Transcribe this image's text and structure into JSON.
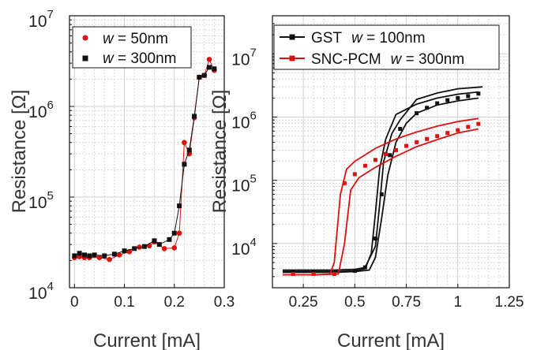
{
  "chart_data": [
    {
      "type": "scatter",
      "xlabel": "Current [mA]",
      "ylabel": "Resistance [Ω]",
      "xlim": [
        -0.01,
        0.3
      ],
      "ylim": [
        10000,
        10000000
      ],
      "yscale": "log",
      "grid": true,
      "legend_position": "top-left",
      "x_ticks": [
        "0",
        "0.1",
        "0.2",
        "0.3"
      ],
      "x_tick_values": [
        0,
        0.1,
        0.2,
        0.3
      ],
      "y_tick_values": [
        10000,
        100000,
        1000000,
        10000000
      ],
      "y_tick_exponents": [
        "4",
        "5",
        "6",
        "7"
      ],
      "y_tick_base": "10",
      "series": [
        {
          "name_prefix": "w",
          "name": " = 50nm",
          "color": "#e01010",
          "marker": "circle",
          "x": [
            0.0,
            0.01,
            0.02,
            0.03,
            0.05,
            0.07,
            0.09,
            0.11,
            0.13,
            0.15,
            0.16,
            0.18,
            0.2,
            0.21,
            0.22,
            0.23,
            0.24,
            0.25,
            0.26,
            0.27,
            0.28
          ],
          "y": [
            21500,
            22000,
            21500,
            21500,
            21500,
            20500,
            23000,
            25000,
            28000,
            29000,
            32000,
            27000,
            27500,
            40000,
            400000,
            300000,
            750000,
            2100000,
            2200000,
            3300000,
            2500000
          ]
        },
        {
          "name_prefix": "w",
          "name": " = 300nm",
          "color": "#111111",
          "marker": "square",
          "x": [
            0.0,
            0.01,
            0.02,
            0.03,
            0.04,
            0.06,
            0.08,
            0.1,
            0.12,
            0.14,
            0.16,
            0.17,
            0.19,
            0.2,
            0.21,
            0.22,
            0.23,
            0.24,
            0.25,
            0.26,
            0.27,
            0.28
          ],
          "y": [
            22500,
            24000,
            23000,
            22500,
            23000,
            22500,
            23500,
            25500,
            27000,
            28500,
            33000,
            30000,
            34000,
            40000,
            80000,
            230000,
            330000,
            780000,
            2100000,
            2200000,
            2700000,
            2600000
          ]
        }
      ]
    },
    {
      "type": "line",
      "xlabel": "Current [mA]",
      "ylabel": "Resistance [Ω]",
      "xlim": [
        0.1,
        1.25
      ],
      "ylim": [
        2000,
        40000000
      ],
      "yscale": "log",
      "grid": true,
      "legend_position": "top",
      "x_ticks": [
        "0.25",
        "0.5",
        "0.75",
        "1",
        "1.25"
      ],
      "x_tick_values": [
        0.25,
        0.5,
        0.75,
        1.0,
        1.25
      ],
      "y_tick_values": [
        10000,
        100000,
        1000000,
        10000000
      ],
      "y_tick_exponents": [
        "4",
        "5",
        "6",
        "7"
      ],
      "y_tick_base": "10",
      "series": [
        {
          "name": "GST",
          "name_suffix": " = 100nm",
          "name_var": "w",
          "color": "#111111",
          "marker": "square",
          "curves": [
            {
              "x": [
                0.15,
                0.2,
                0.3,
                0.4,
                0.5,
                0.55,
                0.58,
                0.6,
                0.62,
                0.65,
                0.7,
                0.8,
                0.9,
                1.0,
                1.1
              ],
              "y": [
                3600,
                3600,
                3600,
                3600,
                3700,
                4000,
                7000,
                30000,
                150000,
                450000,
                1100000,
                1600000,
                2000000,
                2300000,
                2500000
              ]
            },
            {
              "x": [
                0.15,
                0.2,
                0.3,
                0.4,
                0.5,
                0.57,
                0.6,
                0.63,
                0.66,
                0.7,
                0.75,
                0.8,
                0.9,
                1.0,
                1.1
              ],
              "y": [
                3500,
                3500,
                3500,
                3500,
                3600,
                3800,
                6000,
                25000,
                120000,
                400000,
                800000,
                1150000,
                1550000,
                1800000,
                2000000
              ]
            },
            {
              "x": [
                0.15,
                0.2,
                0.3,
                0.4,
                0.5,
                0.55,
                0.6,
                0.62,
                0.64,
                0.68,
                0.72,
                0.8,
                0.9,
                1.0,
                1.12
              ],
              "y": [
                3800,
                3800,
                3800,
                3800,
                3900,
                4200,
                9000,
                40000,
                200000,
                550000,
                900000,
                1900000,
                2400000,
                2800000,
                3000000
              ]
            }
          ],
          "points": {
            "x": [
              0.2,
              0.3,
              0.4,
              0.5,
              0.55,
              0.6,
              0.63,
              0.67,
              0.72,
              0.8,
              0.85,
              0.9,
              0.95,
              1.0,
              1.05,
              1.1
            ],
            "y": [
              3600,
              3600,
              3600,
              3700,
              4200,
              12000,
              60000,
              250000,
              650000,
              1150000,
              1400000,
              1650000,
              1850000,
              2000000,
              2150000,
              2350000
            ]
          }
        },
        {
          "name": "SNC-PCM",
          "name_suffix": " = 300nm",
          "name_var": "w",
          "color": "#e01010",
          "marker": "square",
          "curves": [
            {
              "x": [
                0.15,
                0.2,
                0.3,
                0.38,
                0.4,
                0.43,
                0.46,
                0.5,
                0.6,
                0.7,
                0.8,
                0.9,
                1.0,
                1.1
              ],
              "y": [
                3200,
                3200,
                3200,
                3300,
                5000,
                60000,
                150000,
                200000,
                320000,
                450000,
                580000,
                720000,
                850000,
                950000
              ]
            },
            {
              "x": [
                0.15,
                0.2,
                0.3,
                0.42,
                0.45,
                0.48,
                0.52,
                0.6,
                0.7,
                0.8,
                0.9,
                1.0,
                1.1
              ],
              "y": [
                3200,
                3200,
                3200,
                3300,
                10000,
                70000,
                110000,
                160000,
                240000,
                340000,
                440000,
                560000,
                650000
              ]
            }
          ],
          "points": {
            "x": [
              0.2,
              0.3,
              0.4,
              0.45,
              0.5,
              0.55,
              0.6,
              0.65,
              0.7,
              0.75,
              0.8,
              0.85,
              0.9,
              0.95,
              1.0,
              1.05,
              1.1
            ],
            "y": [
              3300,
              3300,
              3300,
              90000,
              125000,
              170000,
              210000,
              260000,
              300000,
              350000,
              400000,
              450000,
              500000,
              560000,
              620000,
              700000,
              780000
            ]
          }
        }
      ]
    }
  ]
}
